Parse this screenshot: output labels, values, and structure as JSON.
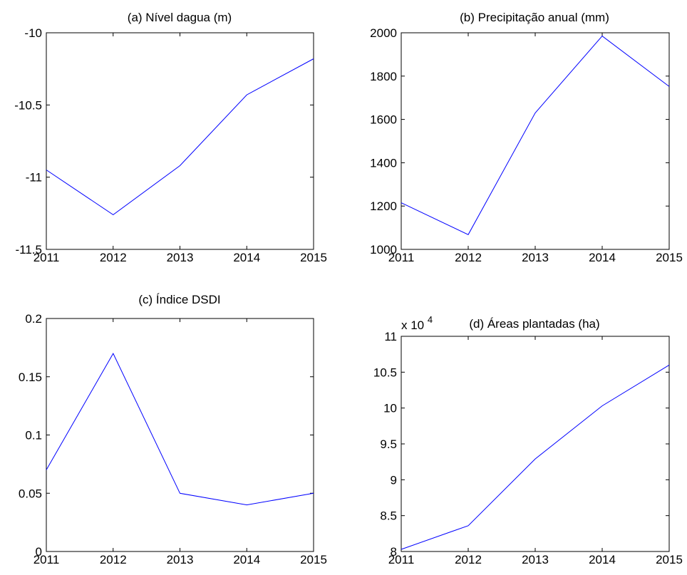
{
  "colors": {
    "line": "#0000ff",
    "axes": "#000000",
    "background": "#ffffff"
  },
  "chart_data": [
    {
      "type": "line",
      "title": "(a) Nível dagua (m)",
      "xlabel": "",
      "ylabel": "",
      "x": [
        2011,
        2012,
        2013,
        2014,
        2015
      ],
      "series": [
        {
          "values": [
            -10.95,
            -11.26,
            -10.92,
            -10.43,
            -10.18
          ]
        }
      ],
      "xlim": [
        2011,
        2015
      ],
      "ylim": [
        -11.5,
        -10
      ],
      "xticks": [
        2011,
        2012,
        2013,
        2014,
        2015
      ],
      "xtick_labels": [
        "2011",
        "2012",
        "2013",
        "2014",
        "2015"
      ],
      "yticks": [
        -11.5,
        -11,
        -10.5,
        -10
      ],
      "ytick_labels": [
        "-11.5",
        "-11",
        "-10.5",
        "-10"
      ],
      "grid": false
    },
    {
      "type": "line",
      "title": "(b) Precipitação anual (mm)",
      "xlabel": "",
      "ylabel": "",
      "x": [
        2011,
        2012,
        2013,
        2014,
        2015
      ],
      "series": [
        {
          "values": [
            1215,
            1068,
            1630,
            1985,
            1752
          ]
        }
      ],
      "xlim": [
        2011,
        2015
      ],
      "ylim": [
        1000,
        2000
      ],
      "xticks": [
        2011,
        2012,
        2013,
        2014,
        2015
      ],
      "xtick_labels": [
        "2011",
        "2012",
        "2013",
        "2014",
        "2015"
      ],
      "yticks": [
        1000,
        1200,
        1400,
        1600,
        1800,
        2000
      ],
      "ytick_labels": [
        "1000",
        "1200",
        "1400",
        "1600",
        "1800",
        "2000"
      ],
      "grid": false
    },
    {
      "type": "line",
      "title": "(c) Índice DSDI",
      "xlabel": "",
      "ylabel": "",
      "x": [
        2011,
        2012,
        2013,
        2014,
        2015
      ],
      "series": [
        {
          "values": [
            0.07,
            0.17,
            0.05,
            0.04,
            0.05
          ]
        }
      ],
      "xlim": [
        2011,
        2015
      ],
      "ylim": [
        0,
        0.2
      ],
      "xticks": [
        2011,
        2012,
        2013,
        2014,
        2015
      ],
      "xtick_labels": [
        "2011",
        "2012",
        "2013",
        "2014",
        "2015"
      ],
      "yticks": [
        0,
        0.05,
        0.1,
        0.15,
        0.2
      ],
      "ytick_labels": [
        "0",
        "0.05",
        "0.1",
        "0.15",
        "0.2"
      ],
      "grid": false
    },
    {
      "type": "line",
      "title": "(d) Áreas plantadas (ha)",
      "xlabel": "",
      "ylabel": "",
      "x": [
        2011,
        2012,
        2013,
        2014,
        2015
      ],
      "series": [
        {
          "values": [
            80300,
            83600,
            92900,
            100300,
            106000
          ]
        }
      ],
      "xlim": [
        2011,
        2015
      ],
      "ylim": [
        80000,
        110000
      ],
      "xticks": [
        2011,
        2012,
        2013,
        2014,
        2015
      ],
      "xtick_labels": [
        "2011",
        "2012",
        "2013",
        "2014",
        "2015"
      ],
      "yticks": [
        80000,
        85000,
        90000,
        95000,
        100000,
        105000,
        110000
      ],
      "ytick_labels": [
        "8",
        "8.5",
        "9",
        "9.5",
        "10",
        "10.5",
        "11"
      ],
      "yscale_factor_label": "x 10",
      "yscale_factor_exponent": "4",
      "grid": false
    }
  ]
}
